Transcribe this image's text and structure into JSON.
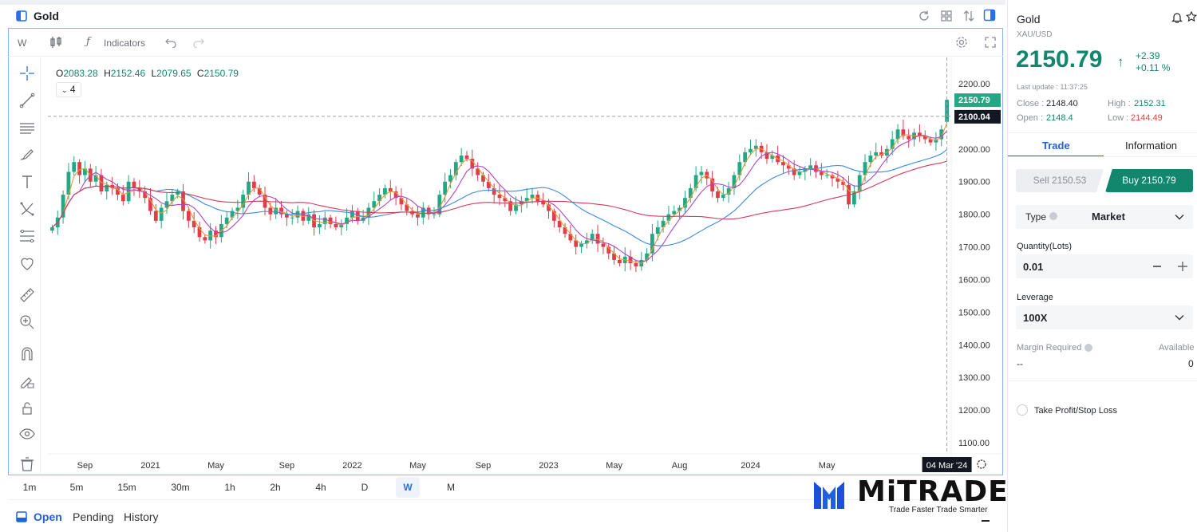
{
  "chart": {
    "title": "Gold",
    "interval_label": "W",
    "indicators_label": "Indicators",
    "ohlc": {
      "o_label": "O",
      "o": "2083.28",
      "h_label": "H",
      "h": "2152.46",
      "l_label": "L",
      "l": "2079.65",
      "c_label": "C",
      "c": "2150.79"
    },
    "collapse_count": "4",
    "price_ticks": [
      "2200.00",
      "2100.00",
      "2000.00",
      "1900.00",
      "1800.00",
      "1700.00",
      "1600.00",
      "1500.00",
      "1400.00",
      "1300.00",
      "1200.00",
      "1100.00"
    ],
    "last_price_tag": "2150.79",
    "crosshair_price_tag": "2100.04",
    "time_ticks": [
      "Sep",
      "2021",
      "May",
      "Sep",
      "2022",
      "May",
      "Sep",
      "2023",
      "May",
      "Aug",
      "2024",
      "May"
    ],
    "crosshair_time_tag": "04 Mar '24",
    "colors": {
      "up": "#22a884",
      "down": "#e03c4a",
      "ma_orange": "#e49a3a",
      "ma_purple": "#b146c2",
      "ma_blue": "#3b8be0",
      "ma_red": "#d63a5c"
    }
  },
  "chart_data": {
    "type": "candlestick",
    "symbol": "XAU/USD",
    "interval": "W",
    "ylim": [
      1100,
      2200
    ],
    "closes": [
      1760,
      1790,
      1860,
      1930,
      1960,
      1920,
      1940,
      1900,
      1920,
      1870,
      1890,
      1880,
      1860,
      1840,
      1900,
      1880,
      1870,
      1850,
      1810,
      1780,
      1820,
      1840,
      1860,
      1870,
      1810,
      1780,
      1760,
      1730,
      1720,
      1750,
      1730,
      1770,
      1790,
      1810,
      1820,
      1860,
      1900,
      1880,
      1860,
      1820,
      1800,
      1820,
      1800,
      1790,
      1790,
      1810,
      1780,
      1800,
      1760,
      1770,
      1790,
      1770,
      1760,
      1770,
      1790,
      1810,
      1780,
      1790,
      1820,
      1840,
      1860,
      1880,
      1870,
      1850,
      1830,
      1810,
      1800,
      1790,
      1820,
      1800,
      1800,
      1860,
      1900,
      1920,
      1960,
      1980,
      1970,
      1940,
      1920,
      1900,
      1880,
      1860,
      1850,
      1840,
      1810,
      1830,
      1840,
      1850,
      1860,
      1840,
      1830,
      1810,
      1780,
      1760,
      1740,
      1720,
      1700,
      1710,
      1720,
      1740,
      1710,
      1700,
      1680,
      1660,
      1650,
      1670,
      1650,
      1640,
      1660,
      1680,
      1740,
      1760,
      1780,
      1800,
      1810,
      1820,
      1850,
      1880,
      1920,
      1930,
      1910,
      1870,
      1850,
      1860,
      1880,
      1920,
      1960,
      1990,
      2000,
      2010,
      1990,
      1970,
      1980,
      1960,
      1950,
      1940,
      1920,
      1930,
      1940,
      1950,
      1930,
      1920,
      1920,
      1910,
      1900,
      1890,
      1830,
      1870,
      1920,
      1960,
      1980,
      1990,
      1980,
      2000,
      2030,
      2060,
      2040,
      2030,
      2050,
      2040,
      2030,
      2020,
      2030,
      2060,
      2150.79
    ]
  },
  "sidebar": {
    "instrument": "Gold",
    "symbol": "XAU/USD",
    "price": "2150.79",
    "change_abs": "+2.39",
    "change_pct": "+0.11 %",
    "last_update": "Last update : 11:37:25",
    "close_label": "Close : ",
    "close": "2148.40",
    "high_label": "High : ",
    "high": "2152.31",
    "open_label": "Open : ",
    "open": "2148.4",
    "low_label": "Low : ",
    "low": "2144.49",
    "tabs": [
      "Trade",
      "Information"
    ],
    "sell_label": "Sell 2150.53",
    "buy_label": "Buy 2150.79",
    "type_label": "Type",
    "type_value": "Market",
    "quantity_label": "Quantity(Lots)",
    "quantity_value": "0.01",
    "leverage_label": "Leverage",
    "leverage_value": "100X",
    "margin_label": "Margin Required",
    "available_label": "Available",
    "margin_value": "--",
    "available_value": "0",
    "tpsl_label": "Take Profit/Stop Loss"
  },
  "timeframes": [
    "1m",
    "5m",
    "15m",
    "30m",
    "1h",
    "2h",
    "4h",
    "D",
    "W",
    "M"
  ],
  "active_timeframe": "W",
  "orders_tabs": [
    "Open",
    "Pending",
    "History"
  ],
  "logo": {
    "text": "MiTRADE",
    "tagline": "Trade Faster Trade Smarter"
  }
}
